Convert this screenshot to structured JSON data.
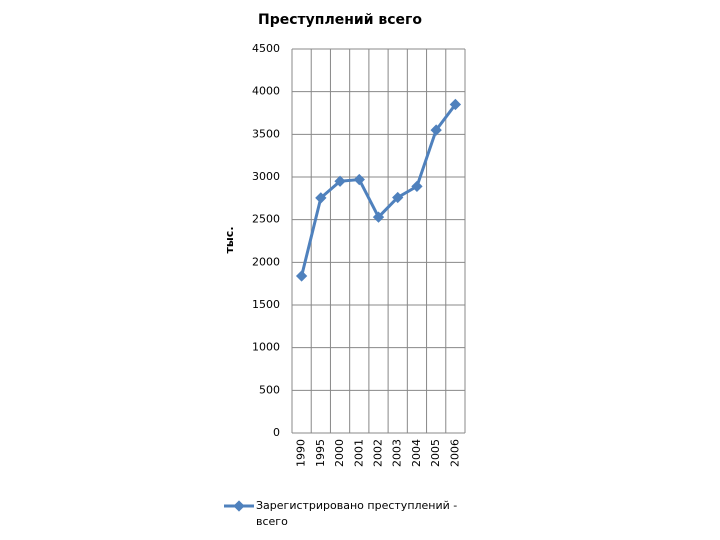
{
  "chart_data": {
    "type": "line",
    "title": "Преступлений всего",
    "y_label": "тыс.",
    "categories": [
      "1990",
      "1995",
      "2000",
      "2001",
      "2002",
      "2003",
      "2004",
      "2005",
      "2006"
    ],
    "series": [
      {
        "name": "Зарегистрировано преступлений - всего",
        "color": "#4f81bd",
        "values": [
          1840,
          2755,
          2950,
          2970,
          2530,
          2760,
          2890,
          3550,
          3850
        ]
      }
    ],
    "ylim": [
      0,
      4500
    ],
    "yticks": [
      0,
      500,
      1000,
      1500,
      2000,
      2500,
      3000,
      3500,
      4000,
      4500
    ],
    "grid": true
  }
}
